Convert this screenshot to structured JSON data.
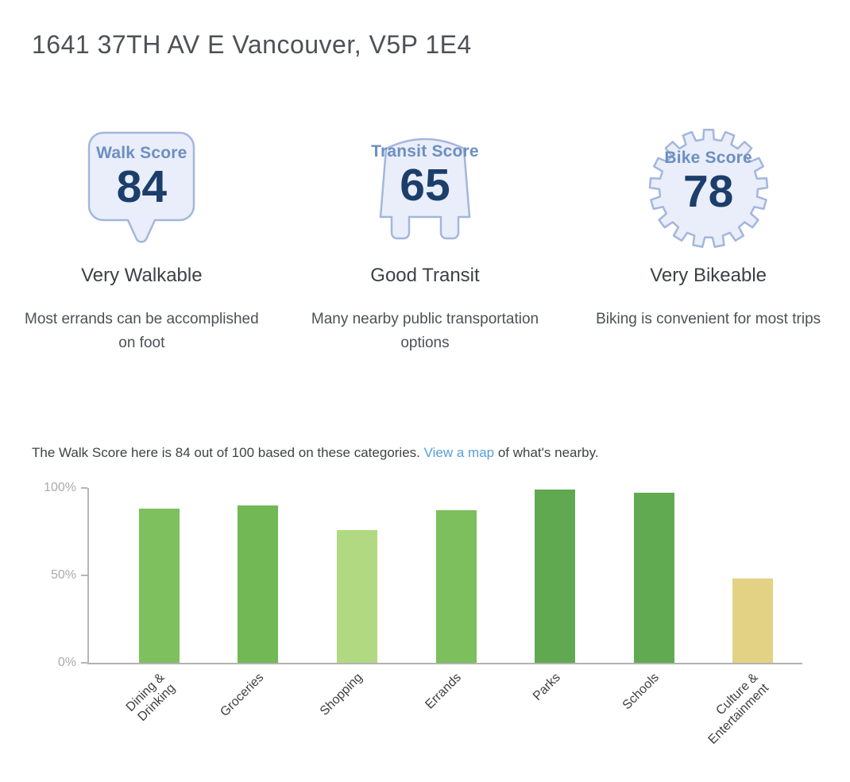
{
  "page": {
    "title": "1641 37TH AV E Vancouver, V5P 1E4"
  },
  "scores": {
    "walk": {
      "badge_label": "Walk Score",
      "score": "84",
      "rating": "Very Walkable",
      "description": "Most errands can be accomplished on foot"
    },
    "transit": {
      "badge_label": "Transit Score",
      "score": "65",
      "rating": "Good Transit",
      "description": "Many nearby public transportation options"
    },
    "bike": {
      "badge_label": "Bike Score",
      "score": "78",
      "rating": "Very Bikeable",
      "description": "Biking is convenient for most trips"
    }
  },
  "chart_intro": {
    "text_before_link": "The Walk Score here is 84 out of 100 based on these categories. ",
    "link_text": "View a map",
    "text_after_link": " of what's nearby."
  },
  "chart_data": {
    "type": "bar",
    "title": "",
    "xlabel": "",
    "ylabel": "",
    "categories": [
      "Dining & Drinking",
      "Groceries",
      "Shopping",
      "Errands",
      "Parks",
      "Schools",
      "Culture & Entertainment"
    ],
    "values": [
      88,
      90,
      76,
      87,
      99,
      97,
      48
    ],
    "bar_colors": [
      "#7dc05d",
      "#72b854",
      "#b1d981",
      "#7cbf5c",
      "#60a950",
      "#62aa51",
      "#e3d284"
    ],
    "tick_lines": [
      [
        "Dining &",
        "Drinking"
      ],
      [
        "Groceries"
      ],
      [
        "Shopping"
      ],
      [
        "Errands"
      ],
      [
        "Parks"
      ],
      [
        "Schools"
      ],
      [
        "Culture &",
        "Entertainment"
      ]
    ],
    "y_ticks": [
      "100%",
      "50%",
      "0%"
    ],
    "ylim": [
      0,
      100
    ],
    "grid": false,
    "legend": "none"
  },
  "colors": {
    "badge_fill": "#e9eefa",
    "badge_stroke": "#a3b6dd",
    "badge_label_blue": "#6c8fc0",
    "badge_number_navy": "#1c3e6b",
    "link_blue": "#55a0d9",
    "axis_gray": "#b5b5b5",
    "y_tick_label_gray": "#ababab",
    "x_tick_label_gray": "#404040"
  }
}
